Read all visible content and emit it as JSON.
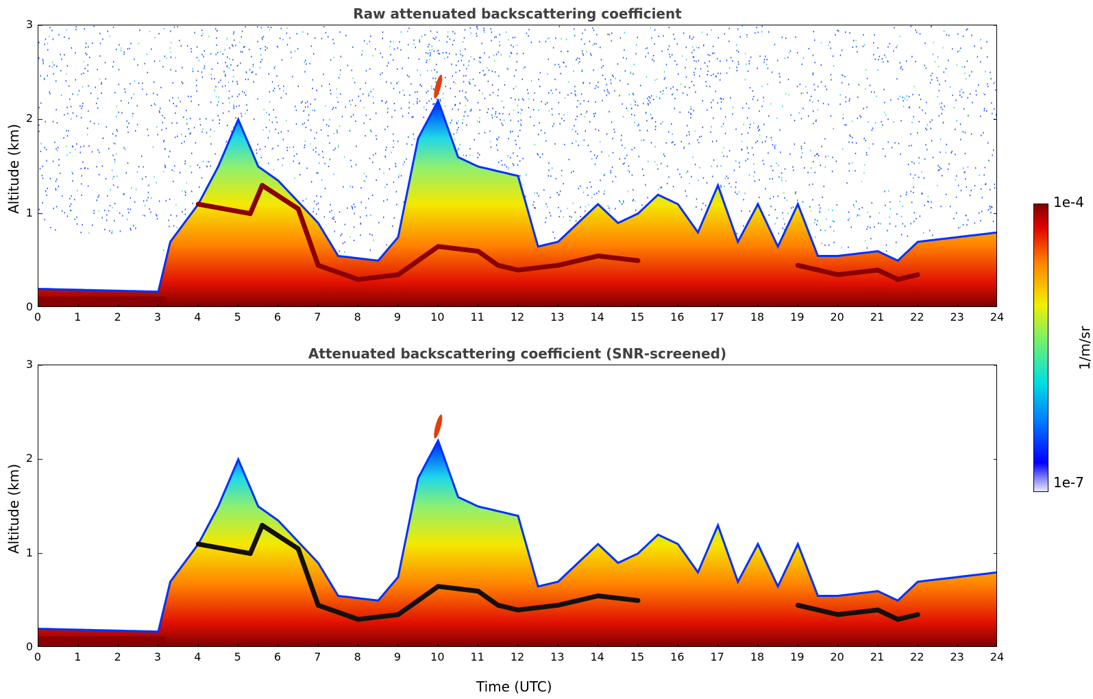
{
  "chart_data": [
    {
      "type": "heatmap",
      "title": "Raw attenuated backscattering coefficient",
      "xlabel": "",
      "ylabel": "Altitude (km)",
      "xlim": [
        0,
        24
      ],
      "ylim": [
        0,
        3
      ],
      "xticks": [
        "0",
        "1",
        "2",
        "3",
        "4",
        "5",
        "6",
        "7",
        "8",
        "9",
        "10",
        "11",
        "12",
        "13",
        "14",
        "15",
        "16",
        "17",
        "18",
        "19",
        "20",
        "21",
        "22",
        "23",
        "24"
      ],
      "yticks": [
        "0",
        "1",
        "2",
        "3"
      ],
      "colorscale": "jet",
      "noise_visible": true
    },
    {
      "type": "heatmap",
      "title": "Attenuated backscattering coefficient (SNR-screened)",
      "xlabel": "Time (UTC)",
      "ylabel": "Altitude (km)",
      "xlim": [
        0,
        24
      ],
      "ylim": [
        0,
        3
      ],
      "xticks": [
        "0",
        "1",
        "2",
        "3",
        "4",
        "5",
        "6",
        "7",
        "8",
        "9",
        "10",
        "11",
        "12",
        "13",
        "14",
        "15",
        "16",
        "17",
        "18",
        "19",
        "20",
        "21",
        "22",
        "23",
        "24"
      ],
      "yticks": [
        "0",
        "1",
        "2",
        "3"
      ],
      "colorscale": "jet",
      "noise_visible": false
    }
  ],
  "colorbar": {
    "max_label": "1e-4",
    "min_label": "1e-7",
    "unit": "1/m/sr"
  },
  "profile": {
    "boundary_layer_top_km": [
      [
        0,
        0.2
      ],
      [
        3,
        0.17
      ],
      [
        3.3,
        0.7
      ],
      [
        4,
        1.1
      ],
      [
        4.5,
        1.5
      ],
      [
        5,
        2.0
      ],
      [
        5.5,
        1.5
      ],
      [
        6,
        1.35
      ],
      [
        7,
        0.9
      ],
      [
        7.5,
        0.55
      ],
      [
        8.5,
        0.5
      ],
      [
        9,
        0.75
      ],
      [
        9.5,
        1.8
      ],
      [
        10,
        2.2
      ],
      [
        10.5,
        1.6
      ],
      [
        11,
        1.5
      ],
      [
        12,
        1.4
      ],
      [
        12.5,
        0.65
      ],
      [
        13,
        0.7
      ],
      [
        14,
        1.1
      ],
      [
        14.5,
        0.9
      ],
      [
        15,
        1.0
      ],
      [
        15.5,
        1.2
      ],
      [
        16,
        1.1
      ],
      [
        16.5,
        0.8
      ],
      [
        17,
        1.3
      ],
      [
        17.5,
        0.7
      ],
      [
        18,
        1.1
      ],
      [
        18.5,
        0.65
      ],
      [
        19,
        1.1
      ],
      [
        19.5,
        0.55
      ],
      [
        20,
        0.55
      ],
      [
        21,
        0.6
      ],
      [
        21.5,
        0.5
      ],
      [
        22,
        0.7
      ],
      [
        23,
        0.75
      ],
      [
        24,
        0.8
      ]
    ],
    "cloud_base_km": [
      [
        4,
        1.1
      ],
      [
        5.3,
        1.0
      ],
      [
        5.6,
        1.3
      ],
      [
        6.5,
        1.05
      ],
      [
        7,
        0.45
      ],
      [
        8,
        0.3
      ],
      [
        9,
        0.35
      ],
      [
        10,
        0.65
      ],
      [
        11,
        0.6
      ],
      [
        11.5,
        0.45
      ],
      [
        12,
        0.4
      ],
      [
        13,
        0.45
      ],
      [
        14,
        0.55
      ],
      [
        15,
        0.5
      ],
      [
        19,
        0.45
      ],
      [
        20,
        0.35
      ],
      [
        21,
        0.4
      ],
      [
        21.5,
        0.3
      ],
      [
        22,
        0.35
      ]
    ]
  }
}
